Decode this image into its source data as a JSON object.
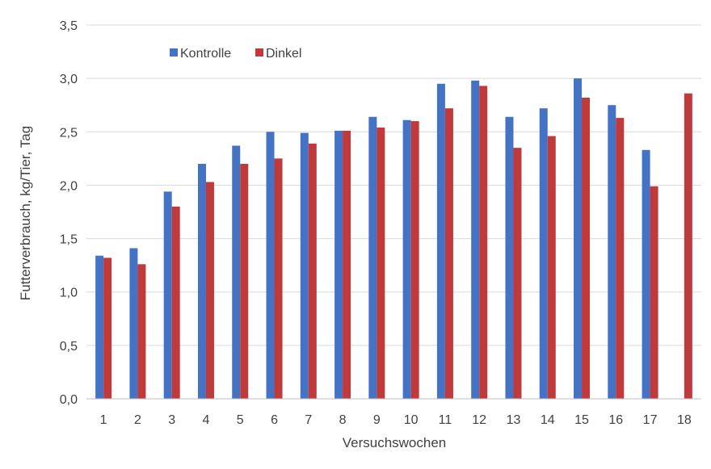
{
  "chart_data": {
    "type": "bar",
    "title": "",
    "xlabel": "Versuchswochen",
    "ylabel": "Futterverbrauch, kg/Tier, Tag",
    "ylim": [
      0,
      3.5
    ],
    "yticks": [
      "0,0",
      "0,5",
      "1,0",
      "1,5",
      "2,0",
      "2,5",
      "3,0",
      "3,5"
    ],
    "ytick_values": [
      0,
      0.5,
      1.0,
      1.5,
      2.0,
      2.5,
      3.0,
      3.5
    ],
    "grid": true,
    "legend_position": "top-left",
    "categories": [
      "1",
      "2",
      "3",
      "4",
      "5",
      "6",
      "7",
      "8",
      "9",
      "10",
      "11",
      "12",
      "13",
      "14",
      "15",
      "16",
      "17",
      "18"
    ],
    "series": [
      {
        "name": "Kontrolle",
        "color": "#4472c4",
        "values": [
          1.34,
          1.41,
          1.94,
          2.2,
          2.37,
          2.5,
          2.49,
          2.51,
          2.64,
          2.61,
          2.95,
          2.98,
          2.64,
          2.72,
          3.0,
          2.75,
          2.33,
          null
        ]
      },
      {
        "name": "Dinkel",
        "color": "#c0393b",
        "values": [
          1.32,
          1.26,
          1.8,
          2.03,
          2.2,
          2.25,
          2.39,
          2.51,
          2.54,
          2.6,
          2.72,
          2.93,
          2.35,
          2.46,
          2.82,
          2.63,
          1.99,
          2.86
        ]
      }
    ]
  }
}
